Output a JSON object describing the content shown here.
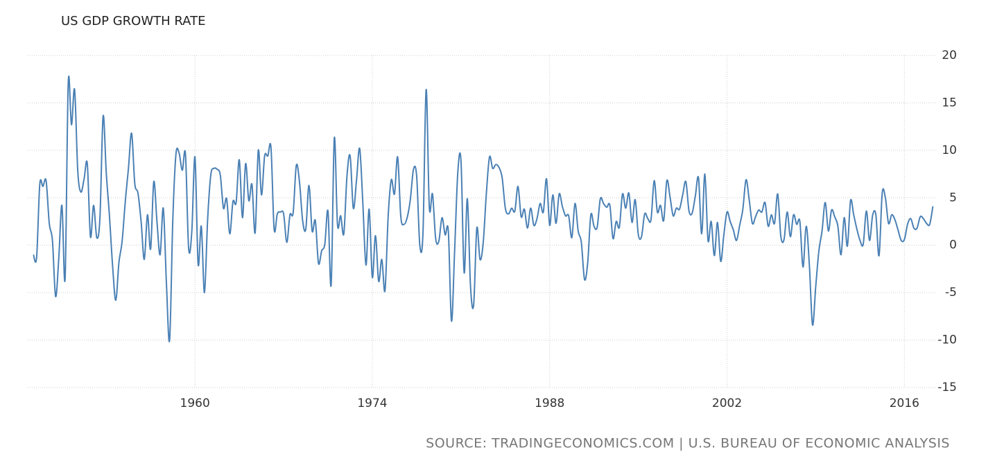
{
  "chart_data": {
    "type": "line",
    "title": "US GDP GROWTH RATE",
    "source": "SOURCE: TRADINGECONOMICS.COM | U.S. BUREAU OF ECONOMIC ANALYSIS",
    "xlim": [
      1946.8,
      2018.5
    ],
    "xticks": [
      1960,
      1974,
      1988,
      2002,
      2016
    ],
    "ylim": [
      -15,
      20
    ],
    "yticks": [
      20,
      15,
      10,
      5,
      0,
      -5,
      -10,
      -15
    ],
    "grid": true,
    "x": [
      1947.25,
      1947.5,
      1947.75,
      1948,
      1948.25,
      1948.5,
      1948.75,
      1949,
      1949.25,
      1949.5,
      1949.75,
      1950,
      1950.25,
      1950.5,
      1950.75,
      1951,
      1951.25,
      1951.5,
      1951.75,
      1952,
      1952.25,
      1952.5,
      1952.75,
      1953,
      1953.25,
      1953.5,
      1953.75,
      1954,
      1954.25,
      1954.5,
      1954.75,
      1955,
      1955.25,
      1955.5,
      1955.75,
      1956,
      1956.25,
      1956.5,
      1956.75,
      1957,
      1957.25,
      1957.5,
      1957.75,
      1958,
      1958.25,
      1958.5,
      1958.75,
      1959,
      1959.25,
      1959.5,
      1959.75,
      1960,
      1960.25,
      1960.5,
      1960.75,
      1961,
      1961.25,
      1961.5,
      1961.75,
      1962,
      1962.25,
      1962.5,
      1962.75,
      1963,
      1963.25,
      1963.5,
      1963.75,
      1964,
      1964.25,
      1964.5,
      1964.75,
      1965,
      1965.25,
      1965.5,
      1965.75,
      1966,
      1966.25,
      1966.5,
      1966.75,
      1967,
      1967.25,
      1967.5,
      1967.75,
      1968,
      1968.25,
      1968.5,
      1968.75,
      1969,
      1969.25,
      1969.5,
      1969.75,
      1970,
      1970.25,
      1970.5,
      1970.75,
      1971,
      1971.25,
      1971.5,
      1971.75,
      1972,
      1972.25,
      1972.5,
      1972.75,
      1973,
      1973.25,
      1973.5,
      1973.75,
      1974,
      1974.25,
      1974.5,
      1974.75,
      1975,
      1975.25,
      1975.5,
      1975.75,
      1976,
      1976.25,
      1976.5,
      1976.75,
      1977,
      1977.25,
      1977.5,
      1977.75,
      1978,
      1978.25,
      1978.5,
      1978.75,
      1979,
      1979.25,
      1979.5,
      1979.75,
      1980,
      1980.25,
      1980.5,
      1980.75,
      1981,
      1981.25,
      1981.5,
      1981.75,
      1982,
      1982.25,
      1982.5,
      1982.75,
      1983,
      1983.25,
      1983.5,
      1983.75,
      1984,
      1984.25,
      1984.5,
      1984.75,
      1985,
      1985.25,
      1985.5,
      1985.75,
      1986,
      1986.25,
      1986.5,
      1986.75,
      1987,
      1987.25,
      1987.5,
      1987.75,
      1988,
      1988.25,
      1988.5,
      1988.75,
      1989,
      1989.25,
      1989.5,
      1989.75,
      1990,
      1990.25,
      1990.5,
      1990.75,
      1991,
      1991.25,
      1991.5,
      1991.75,
      1992,
      1992.25,
      1992.5,
      1992.75,
      1993,
      1993.25,
      1993.5,
      1993.75,
      1994,
      1994.25,
      1994.5,
      1994.75,
      1995,
      1995.25,
      1995.5,
      1995.75,
      1996,
      1996.25,
      1996.5,
      1996.75,
      1997,
      1997.25,
      1997.5,
      1997.75,
      1998,
      1998.25,
      1998.5,
      1998.75,
      1999,
      1999.25,
      1999.5,
      1999.75,
      2000,
      2000.25,
      2000.5,
      2000.75,
      2001,
      2001.25,
      2001.5,
      2001.75,
      2002,
      2002.25,
      2002.5,
      2002.75,
      2003,
      2003.25,
      2003.5,
      2003.75,
      2004,
      2004.25,
      2004.5,
      2004.75,
      2005,
      2005.25,
      2005.5,
      2005.75,
      2006,
      2006.25,
      2006.5,
      2006.75,
      2007,
      2007.25,
      2007.5,
      2007.75,
      2008,
      2008.25,
      2008.5,
      2008.75,
      2009,
      2009.25,
      2009.5,
      2009.75,
      2010,
      2010.25,
      2010.5,
      2010.75,
      2011,
      2011.25,
      2011.5,
      2011.75,
      2012,
      2012.25,
      2012.5,
      2012.75,
      2013,
      2013.25,
      2013.5,
      2013.75,
      2014,
      2014.25,
      2014.5,
      2014.75,
      2015,
      2015.25,
      2015.5,
      2015.75,
      2016,
      2016.25,
      2016.5,
      2016.75,
      2017,
      2017.25,
      2017.5,
      2017.75,
      2018,
      2018.25
    ],
    "series": [
      {
        "color": "#4a80b4",
        "values": [
          -1.0,
          -1.3,
          6.4,
          6.2,
          6.8,
          2.3,
          0.5,
          -5.4,
          -1.4,
          4.2,
          -3.5,
          17.2,
          12.7,
          16.4,
          7.8,
          5.6,
          7.0,
          8.6,
          0.9,
          4.2,
          0.8,
          2.9,
          13.6,
          7.6,
          3.1,
          -2.2,
          -5.8,
          -1.8,
          0.4,
          4.6,
          8.1,
          11.8,
          6.5,
          5.5,
          2.5,
          -1.5,
          3.2,
          -0.4,
          6.7,
          2.5,
          -1.0,
          3.9,
          -4.1,
          -10.0,
          2.6,
          9.6,
          9.7,
          7.9,
          9.6,
          -0.3,
          1.4,
          9.3,
          -2.0,
          2.0,
          -5.0,
          2.7,
          7.4,
          8.1,
          8.0,
          7.4,
          3.9,
          4.9,
          1.2,
          4.6,
          4.5,
          9.0,
          2.9,
          8.6,
          4.7,
          6.4,
          1.3,
          10.0,
          5.3,
          9.4,
          9.4,
          10.3,
          1.7,
          3.3,
          3.5,
          3.3,
          0.3,
          3.2,
          3.4,
          8.4,
          6.7,
          2.6,
          1.7,
          6.3,
          1.5,
          2.6,
          -1.9,
          -0.6,
          0.1,
          3.6,
          -4.2,
          11.3,
          2.2,
          3.1,
          1.2,
          7.3,
          9.4,
          3.9,
          6.8,
          10.2,
          4.5,
          -2.1,
          3.8,
          -3.4,
          1.0,
          -3.8,
          -1.5,
          -4.8,
          3.0,
          6.9,
          5.4,
          9.3,
          3.0,
          2.2,
          2.9,
          4.8,
          8.0,
          7.3,
          0.0,
          1.3,
          16.4,
          4.0,
          5.4,
          0.7,
          0.4,
          2.9,
          1.1,
          1.5,
          -8.0,
          -0.5,
          7.7,
          8.9,
          -2.9,
          4.9,
          -4.3,
          -6.3,
          1.8,
          -1.5,
          0.2,
          5.4,
          9.3,
          8.1,
          8.5,
          8.2,
          7.1,
          3.9,
          3.3,
          3.9,
          3.6,
          6.2,
          3.0,
          3.8,
          1.8,
          3.9,
          2.1,
          2.8,
          4.4,
          3.5,
          7.0,
          2.1,
          5.3,
          2.3,
          5.4,
          4.1,
          3.1,
          3.1,
          0.8,
          4.4,
          1.5,
          0.3,
          -3.6,
          -1.9,
          3.2,
          2.0,
          1.9,
          4.9,
          4.4,
          4.0,
          4.2,
          0.7,
          2.5,
          1.9,
          5.4,
          3.9,
          5.5,
          2.4,
          4.8,
          1.1,
          0.9,
          3.3,
          2.8,
          2.7,
          6.8,
          3.5,
          4.2,
          2.6,
          6.8,
          5.1,
          3.1,
          3.9,
          3.8,
          5.3,
          6.7,
          3.6,
          3.4,
          5.2,
          7.1,
          1.2,
          7.5,
          0.5,
          2.5,
          -1.1,
          2.4,
          -1.7,
          1.1,
          3.5,
          2.5,
          1.6,
          0.5,
          2.1,
          3.8,
          6.9,
          4.8,
          2.3,
          3.0,
          3.7,
          3.5,
          4.5,
          2.0,
          3.2,
          2.3,
          5.4,
          0.9,
          0.6,
          3.5,
          0.9,
          3.2,
          2.2,
          2.5,
          -2.3,
          2.0,
          -2.1,
          -8.4,
          -4.4,
          -0.6,
          1.5,
          4.5,
          1.5,
          3.7,
          3.0,
          2.0,
          -1.0,
          2.9,
          -0.1,
          4.7,
          3.2,
          1.7,
          0.5,
          0.1,
          3.6,
          0.5,
          3.2,
          3.2,
          -1.1,
          5.5,
          5.0,
          2.3,
          3.2,
          2.7,
          1.6,
          0.5,
          0.6,
          2.2,
          2.8,
          1.8,
          1.8,
          3.0,
          2.8,
          2.3,
          2.2,
          4.1
        ]
      }
    ]
  }
}
